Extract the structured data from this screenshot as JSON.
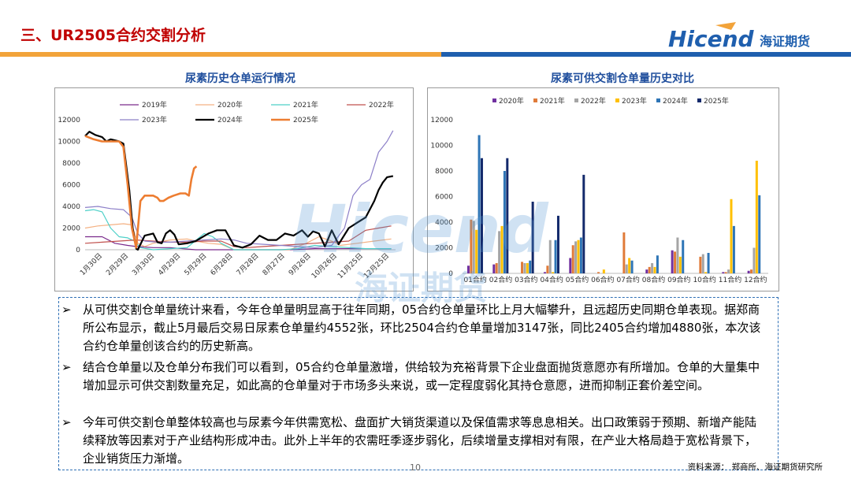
{
  "header": {
    "title": "三、UR2505合约交割分析",
    "logo_text": "Hicend",
    "logo_cn": "海证期货"
  },
  "colors": {
    "title_red": "#c00000",
    "band_orange": "#f2a33a",
    "band_blue": "#1f5fae",
    "chart_title_blue": "#1f4e9d",
    "box_border": "#2e6fb5"
  },
  "left_chart_title": "尿素历史仓单运行情况",
  "right_chart_title": "尿素可供交割仓单量历史对比",
  "chart_data": [
    {
      "type": "line",
      "title": "尿素历史仓单运行情况",
      "ylim": [
        0,
        12000
      ],
      "yticks": [
        0,
        2000,
        4000,
        6000,
        8000,
        10000,
        12000
      ],
      "x_ticks": [
        "1月30日",
        "2月29日",
        "3月30日",
        "4月29日",
        "5月29日",
        "6月28日",
        "7月28日",
        "8月27日",
        "9月26日",
        "10月26日",
        "11月25日",
        "12月25日"
      ],
      "x_range": [
        0,
        365
      ],
      "series": [
        {
          "name": "2019年",
          "color": "#7a2a8c",
          "width": 1.2,
          "points": [
            [
              0,
              1200
            ],
            [
              20,
              1200
            ],
            [
              35,
              600
            ],
            [
              50,
              400
            ],
            [
              60,
              300
            ],
            [
              80,
              200
            ],
            [
              100,
              200
            ],
            [
              130,
              0
            ],
            [
              150,
              0
            ],
            [
              170,
              0
            ],
            [
              200,
              0
            ],
            [
              240,
              0
            ],
            [
              270,
              100
            ],
            [
              300,
              100
            ],
            [
              330,
              100
            ],
            [
              360,
              100
            ]
          ]
        },
        {
          "name": "2020年",
          "color": "#f4b183",
          "width": 1.2,
          "points": [
            [
              0,
              2000
            ],
            [
              15,
              2200
            ],
            [
              30,
              2300
            ],
            [
              45,
              2400
            ],
            [
              55,
              2300
            ],
            [
              62,
              600
            ],
            [
              70,
              300
            ],
            [
              80,
              600
            ],
            [
              100,
              900
            ],
            [
              120,
              1000
            ],
            [
              130,
              800
            ],
            [
              145,
              600
            ],
            [
              160,
              500
            ],
            [
              175,
              0
            ],
            [
              200,
              0
            ],
            [
              240,
              0
            ],
            [
              260,
              600
            ],
            [
              275,
              1200
            ],
            [
              290,
              800
            ],
            [
              300,
              400
            ],
            [
              320,
              600
            ],
            [
              340,
              800
            ],
            [
              360,
              1000
            ]
          ]
        },
        {
          "name": "2021年",
          "color": "#4dd0c8",
          "width": 1.2,
          "points": [
            [
              0,
              3600
            ],
            [
              10,
              3700
            ],
            [
              20,
              3500
            ],
            [
              30,
              2000
            ],
            [
              40,
              1200
            ],
            [
              50,
              1100
            ],
            [
              58,
              800
            ],
            [
              65,
              200
            ],
            [
              80,
              0
            ],
            [
              100,
              100
            ],
            [
              120,
              200
            ],
            [
              140,
              1500
            ],
            [
              150,
              1200
            ],
            [
              160,
              600
            ],
            [
              175,
              0
            ],
            [
              200,
              0
            ],
            [
              230,
              0
            ],
            [
              250,
              100
            ],
            [
              270,
              400
            ],
            [
              290,
              300
            ],
            [
              310,
              200
            ],
            [
              330,
              100
            ],
            [
              360,
              100
            ]
          ]
        },
        {
          "name": "2022年",
          "color": "#c0504d",
          "width": 1.2,
          "points": [
            [
              0,
              600
            ],
            [
              20,
              700
            ],
            [
              40,
              800
            ],
            [
              60,
              900
            ],
            [
              80,
              800
            ],
            [
              100,
              700
            ],
            [
              120,
              700
            ],
            [
              140,
              800
            ],
            [
              160,
              800
            ],
            [
              175,
              300
            ],
            [
              190,
              200
            ],
            [
              210,
              300
            ],
            [
              230,
              400
            ],
            [
              250,
              500
            ],
            [
              270,
              600
            ],
            [
              290,
              700
            ],
            [
              310,
              800
            ],
            [
              330,
              1800
            ],
            [
              345,
              2000
            ],
            [
              360,
              2200
            ]
          ]
        },
        {
          "name": "2023年",
          "color": "#8c7fc8",
          "width": 1.2,
          "points": [
            [
              0,
              3900
            ],
            [
              15,
              4000
            ],
            [
              30,
              3800
            ],
            [
              45,
              3700
            ],
            [
              55,
              3000
            ],
            [
              62,
              1500
            ],
            [
              70,
              800
            ],
            [
              85,
              700
            ],
            [
              100,
              700
            ],
            [
              120,
              800
            ],
            [
              140,
              900
            ],
            [
              160,
              1000
            ],
            [
              175,
              900
            ],
            [
              190,
              600
            ],
            [
              210,
              500
            ],
            [
              230,
              400
            ],
            [
              250,
              300
            ],
            [
              270,
              200
            ],
            [
              290,
              400
            ],
            [
              305,
              2000
            ],
            [
              315,
              5000
            ],
            [
              325,
              6000
            ],
            [
              335,
              6500
            ],
            [
              345,
              9000
            ],
            [
              355,
              10000
            ],
            [
              362,
              11000
            ]
          ]
        },
        {
          "name": "2024年",
          "color": "#000000",
          "width": 2.2,
          "points": [
            [
              0,
              10500
            ],
            [
              5,
              10900
            ],
            [
              12,
              10600
            ],
            [
              20,
              10400
            ],
            [
              25,
              10000
            ],
            [
              30,
              10200
            ],
            [
              35,
              10100
            ],
            [
              40,
              10000
            ],
            [
              45,
              9800
            ],
            [
              48,
              8000
            ],
            [
              52,
              5500
            ],
            [
              56,
              2000
            ],
            [
              60,
              100
            ],
            [
              62,
              0
            ],
            [
              70,
              1300
            ],
            [
              80,
              1500
            ],
            [
              85,
              700
            ],
            [
              90,
              600
            ],
            [
              95,
              1500
            ],
            [
              100,
              1800
            ],
            [
              105,
              1400
            ],
            [
              110,
              500
            ],
            [
              120,
              600
            ],
            [
              130,
              800
            ],
            [
              145,
              1500
            ],
            [
              155,
              1800
            ],
            [
              165,
              1800
            ],
            [
              175,
              400
            ],
            [
              185,
              200
            ],
            [
              195,
              500
            ],
            [
              205,
              1300
            ],
            [
              215,
              900
            ],
            [
              225,
              900
            ],
            [
              235,
              1500
            ],
            [
              245,
              1300
            ],
            [
              255,
              1800
            ],
            [
              262,
              1200
            ],
            [
              268,
              1700
            ],
            [
              275,
              1500
            ],
            [
              282,
              300
            ],
            [
              290,
              1800
            ],
            [
              298,
              500
            ],
            [
              310,
              2000
            ],
            [
              320,
              2500
            ],
            [
              330,
              3000
            ],
            [
              340,
              4500
            ],
            [
              345,
              5500
            ],
            [
              350,
              6200
            ],
            [
              355,
              6700
            ],
            [
              362,
              6800
            ]
          ]
        },
        {
          "name": "2025年",
          "color": "#ed7d31",
          "width": 2.6,
          "points": [
            [
              0,
              10500
            ],
            [
              10,
              10200
            ],
            [
              20,
              10000
            ],
            [
              30,
              10000
            ],
            [
              40,
              10000
            ],
            [
              45,
              9500
            ],
            [
              50,
              6000
            ],
            [
              55,
              2000
            ],
            [
              60,
              200
            ],
            [
              65,
              4500
            ],
            [
              70,
              5000
            ],
            [
              80,
              5000
            ],
            [
              85,
              4800
            ],
            [
              88,
              4500
            ],
            [
              92,
              4500
            ],
            [
              98,
              4800
            ],
            [
              104,
              5000
            ],
            [
              112,
              5200
            ],
            [
              118,
              5200
            ],
            [
              122,
              5000
            ],
            [
              125,
              6500
            ],
            [
              128,
              7500
            ],
            [
              131,
              7700
            ]
          ]
        }
      ]
    },
    {
      "type": "bar",
      "title": "尿素可供交割仓单量历史对比",
      "ylim": [
        0,
        12000
      ],
      "yticks": [
        0,
        2000,
        4000,
        6000,
        8000,
        10000,
        12000
      ],
      "categories": [
        "01合约",
        "02合约",
        "03合约",
        "04合约",
        "05合约",
        "06合约",
        "07合约",
        "08合约",
        "09合约",
        "10合约",
        "11合约",
        "12合约"
      ],
      "series": [
        {
          "name": "2020年",
          "color": "#7030a0",
          "values": [
            600,
            700,
            0,
            100,
            1200,
            0,
            0,
            300,
            1800,
            0,
            100,
            200
          ]
        },
        {
          "name": "2021年",
          "color": "#e07b39",
          "values": [
            4200,
            800,
            900,
            600,
            2200,
            100,
            3200,
            500,
            1700,
            1300,
            100,
            300
          ]
        },
        {
          "name": "2022年",
          "color": "#a5a5a5",
          "values": [
            4100,
            3300,
            800,
            2600,
            2500,
            0,
            700,
            800,
            2800,
            1500,
            300,
            2000
          ]
        },
        {
          "name": "2023年",
          "color": "#ffc000",
          "values": [
            3400,
            3700,
            800,
            100,
            2600,
            300,
            1200,
            500,
            1300,
            100,
            5800,
            8800
          ]
        },
        {
          "name": "2024年",
          "color": "#2e75b6",
          "values": [
            10800,
            8000,
            1000,
            2600,
            2800,
            0,
            1000,
            1400,
            2600,
            1600,
            3700,
            6100
          ]
        },
        {
          "name": "2025年",
          "color": "#13296b",
          "values": [
            9000,
            9000,
            5600,
            4500,
            7700,
            0,
            0,
            0,
            0,
            0,
            0,
            0
          ]
        }
      ]
    }
  ],
  "bullets": [
    "从可供交割仓单量统计来看，今年仓单量明显高于往年同期，05合约仓单量环比上月大幅攀升，且远超历史同期仓单表现。据郑商所公布显示，截止5月最后交易日尿素仓单量约4552张，环比2504合约仓单量增加3147张，同比2405合约增加4880张，本次该合约仓单量创该合约的历史新高。",
    "结合仓单量以及仓单分布我们可以看到，05合约仓单量激增，供给较为充裕背景下企业盘面抛货意愿亦有所增加。仓单的大量集中增加显示可供交割数量充足，如此高的仓单量对于市场多头来说，或一定程度弱化其持仓意愿，进而抑制正套价差空间。",
    "今年可供交割仓单整体较高也与尿素今年供需宽松、盘面扩大销货渠道以及保值需求等息息相关。出口政策弱于预期、新增产能陆续释放等因素对于产业结构形成冲击。此外上半年的农需旺季逐步弱化，后续增量支撑相对有限，在产业大格局趋于宽松背景下，企业销货压力渐增。"
  ],
  "source": "资料来源： 郑商所、海证期货研究所",
  "page_number": "10",
  "watermark_text": "Hicend",
  "watermark_cn": "海证期货"
}
